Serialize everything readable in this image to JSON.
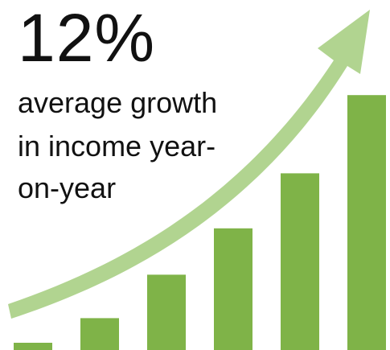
{
  "headline": "12%",
  "caption_lines": [
    "average growth",
    "in income year-",
    "on-year"
  ],
  "colors": {
    "bar": "#7fb348",
    "arrow": "#a9cf84",
    "text": "#111111"
  },
  "chart_data": {
    "type": "bar",
    "categories": [
      "",
      "",
      "",
      "",
      "",
      ""
    ],
    "values": [
      2.5,
      11,
      26,
      42,
      61,
      88
    ],
    "ylim": [
      0,
      100
    ],
    "grid": false,
    "legend": "none",
    "annotations": [
      "upward trend arrow"
    ]
  }
}
